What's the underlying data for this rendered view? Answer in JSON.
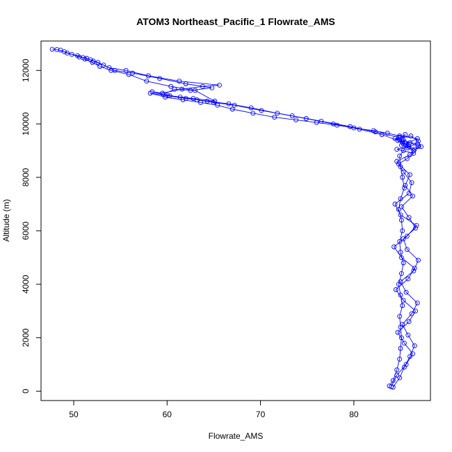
{
  "chart_data": {
    "type": "scatter",
    "title": "ATOM3 Northeast_Pacific_1 Flowrate_AMS",
    "xlabel": "Flowrate_AMS",
    "ylabel": "Altitude (m)",
    "xlim": [
      46.5,
      88.2
    ],
    "ylim": [
      -350,
      13100
    ],
    "x_ticks": [
      50,
      60,
      70,
      80
    ],
    "y_ticks": [
      0,
      2000,
      4000,
      6000,
      8000,
      10000,
      12000
    ],
    "x_tick_labels": [
      "50",
      "60",
      "70",
      "80"
    ],
    "y_tick_labels": [
      "0",
      "2000",
      "4000",
      "6000",
      "8000",
      "10000",
      "12000"
    ],
    "grid": false,
    "legend": false,
    "marker": "open-circle",
    "connected": true,
    "color": "#0000ff",
    "series": [
      {
        "x": [
          83.8,
          84.2,
          84.6,
          84.9,
          85.0,
          85.1,
          85.0,
          84.9,
          85.2,
          85.0,
          84.8,
          85.1,
          85.3,
          85.0,
          84.9,
          85.2,
          85.1,
          84.8,
          85.0,
          85.4,
          85.2,
          85.0,
          84.9,
          85.3,
          85.6,
          85.2,
          84.9,
          85.0,
          85.5,
          85.3,
          85.1,
          85.8,
          86.4,
          86.9,
          86.0,
          84.8,
          82.3,
          79.6,
          76.5,
          73.4,
          70.1,
          67.2,
          65.0,
          63.2,
          61.4,
          59.6,
          60.8,
          62.5,
          64.8,
          62.0,
          59.2,
          56.3,
          54.4,
          53.2,
          52.1,
          51.4,
          50.6,
          49.8,
          49.0,
          48.2,
          47.7
        ],
        "y": [
          200,
          400,
          800,
          1200,
          1600,
          2000,
          2400,
          2800,
          3200,
          3600,
          4000,
          4400,
          4800,
          5200,
          5600,
          6000,
          6400,
          6800,
          7200,
          7600,
          8000,
          8400,
          8800,
          9000,
          9200,
          9300,
          9400,
          9500,
          9600,
          9400,
          9200,
          9100,
          9000,
          9150,
          9300,
          9500,
          9700,
          9900,
          10100,
          10300,
          10500,
          10700,
          10800,
          10900,
          11000,
          11100,
          11300,
          11250,
          11350,
          11500,
          11700,
          11900,
          12000,
          12200,
          12350,
          12450,
          12500,
          12600,
          12700,
          12780,
          12790
        ]
      },
      {
        "x": [
          84.2,
          84.9,
          85.4,
          86.0,
          86.5,
          85.8,
          85.2,
          86.2,
          86.8,
          85.6,
          85.0,
          86.4,
          86.9,
          85.7,
          85.3,
          86.6,
          85.9,
          85.1,
          86.3,
          85.5,
          86.0,
          84.8,
          85.7,
          86.4,
          84.6,
          85.9,
          86.8,
          85.2,
          84.4,
          86.1,
          86.9,
          87.2,
          86.5,
          85.8,
          84.7,
          83.0,
          80.6,
          77.8,
          74.9,
          71.8,
          69.0,
          66.6,
          64.3,
          62.0,
          60.1,
          58.4,
          59.5,
          61.6,
          63.8,
          65.6,
          61.3,
          58.0,
          55.6,
          53.8,
          52.6,
          51.8,
          51.0,
          50.4,
          49.3,
          48.6
        ],
        "y": [
          150,
          500,
          900,
          1300,
          1700,
          2100,
          2500,
          2900,
          3300,
          3700,
          4100,
          4500,
          4900,
          5300,
          5700,
          6100,
          6500,
          6900,
          7300,
          7700,
          8100,
          8500,
          8700,
          8900,
          9050,
          9150,
          9250,
          9350,
          9450,
          9550,
          9350,
          9150,
          9050,
          9200,
          9380,
          9600,
          9800,
          10000,
          10200,
          10400,
          10600,
          10750,
          10850,
          10950,
          11050,
          11200,
          11150,
          11300,
          11400,
          11450,
          11600,
          11800,
          12000,
          12100,
          12300,
          12400,
          12480,
          12550,
          12650,
          12760
        ]
      },
      {
        "x": [
          84.0,
          84.6,
          85.6,
          86.3,
          85.4,
          84.7,
          85.9,
          86.6,
          85.3,
          84.5,
          85.8,
          86.5,
          85.1,
          84.3,
          85.7,
          86.7,
          85.0,
          84.4,
          85.9,
          86.2,
          85.3,
          84.6,
          86.0,
          86.4,
          85.5,
          86.8,
          84.9,
          83.6,
          82.1,
          80.0,
          78.2,
          76.0,
          73.8,
          71.5,
          69.2,
          67.0,
          65.4,
          63.6,
          61.7,
          59.8,
          58.2,
          60.3,
          62.8,
          65.1,
          63.0,
          60.4,
          57.8,
          55.9,
          54.0,
          52.8,
          52.0,
          51.2
        ],
        "y": [
          170,
          600,
          1000,
          1400,
          1800,
          2200,
          2600,
          3000,
          3400,
          3800,
          4200,
          4600,
          5000,
          5400,
          5800,
          6200,
          6600,
          7000,
          7400,
          7800,
          8200,
          8600,
          8850,
          9000,
          9250,
          9450,
          9550,
          9650,
          9750,
          9850,
          9950,
          10050,
          10150,
          10250,
          10400,
          10550,
          10700,
          10800,
          10900,
          11000,
          11150,
          11050,
          10950,
          10850,
          11250,
          11400,
          11600,
          11850,
          12000,
          12150,
          12300,
          12420
        ]
      }
    ]
  }
}
